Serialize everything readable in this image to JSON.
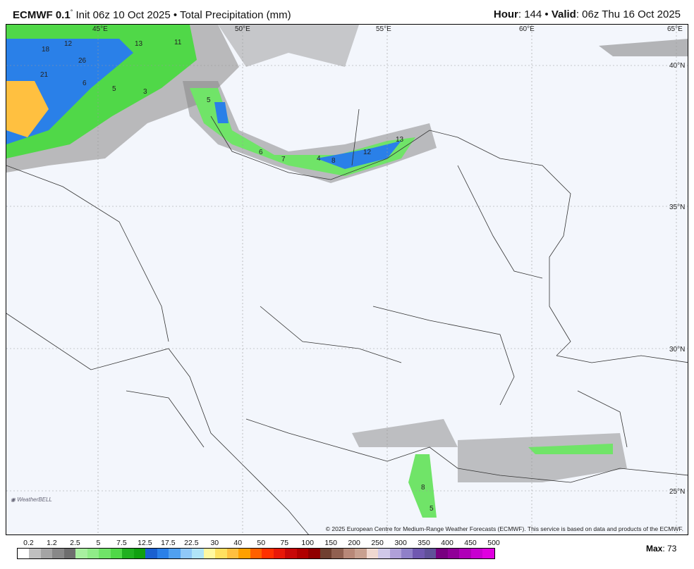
{
  "header": {
    "model": "ECMWF 0.1",
    "degree": "°",
    "init": " Init 06z 10 Oct 2025 • Total Precipitation (mm)",
    "hour_label": "Hour",
    "hour": ": 144 • ",
    "valid_label": "Valid",
    "valid": ": 06z Thu 16 Oct 2025"
  },
  "map": {
    "lon_labels": [
      "45°E",
      "50°E",
      "55°E",
      "60°E",
      "65°E"
    ],
    "lat_labels": [
      "40°N",
      "35°N",
      "30°N",
      "25°N"
    ],
    "contour_values": [
      "18",
      "12",
      "26",
      "21",
      "6",
      "5",
      "3",
      "13",
      "11",
      "5",
      "6",
      "7",
      "4",
      "8",
      "12",
      "13",
      "5",
      "8"
    ],
    "copyright": "© 2025 European Centre for Medium-Range Weather Forecasts (ECMWF). This service is based on data and products of the ECMWF.",
    "logo": "WeatherBELL"
  },
  "colorbar": {
    "labels": [
      "0.2",
      "1.2",
      "2.5",
      "5",
      "7.5",
      "12.5",
      "17.5",
      "22.5",
      "30",
      "40",
      "50",
      "75",
      "100",
      "150",
      "200",
      "250",
      "300",
      "350",
      "400",
      "450",
      "500"
    ],
    "colors": [
      "#ffffff",
      "#c0c0c0",
      "#a4a4a4",
      "#888888",
      "#6e6e6e",
      "#a8f0a0",
      "#90ec88",
      "#70e468",
      "#50d848",
      "#20b020",
      "#10a010",
      "#1a60d0",
      "#2a80e8",
      "#50a0f0",
      "#90c8f8",
      "#b0e4f8",
      "#fff8a0",
      "#ffe060",
      "#ffc040",
      "#ffa000",
      "#ff6000",
      "#ff3000",
      "#e81808",
      "#c80808",
      "#b00000",
      "#900000",
      "#704030",
      "#906050",
      "#b88878",
      "#c8a090",
      "#f0d8d0",
      "#d0c8e8",
      "#b0a0d8",
      "#9080c8",
      "#7058b0",
      "#605098",
      "#780080",
      "#900098",
      "#b000b8",
      "#c800d0",
      "#e000e0"
    ],
    "max_label": "Max",
    "max_value": ": 73"
  }
}
